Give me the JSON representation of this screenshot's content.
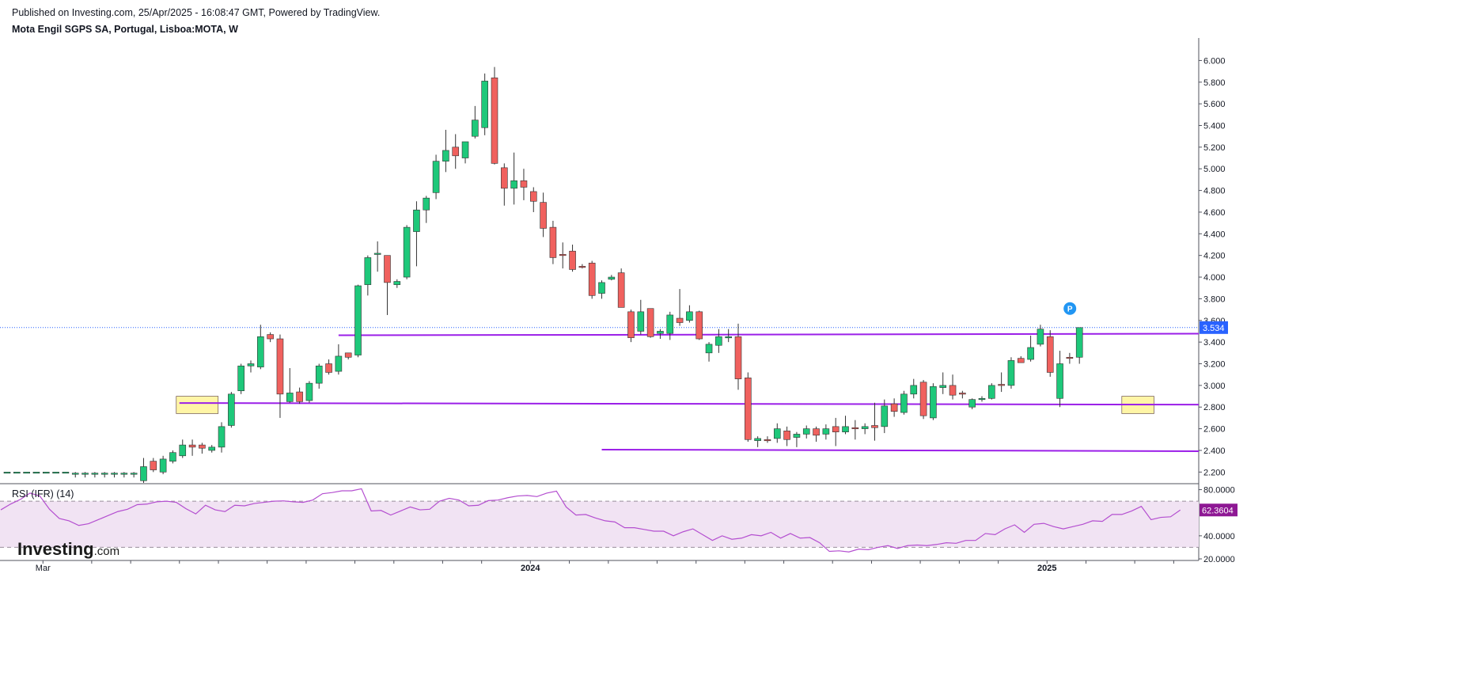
{
  "header": {
    "published": "Published on Investing.com, 25/Apr/2025 - 16:08:47 GMT, Powered by TradingView.",
    "symbol": "Mota Engil SGPS SA, Portugal, Lisboa:MOTA, W"
  },
  "logo": {
    "main": "Investing",
    "suffix": ".com"
  },
  "colors": {
    "up": "#1ec87a",
    "down": "#f0615e",
    "level_line": "#9b1fe8",
    "rsi_line": "#b44fd0",
    "rsi_band": "#f1e3f3",
    "price_label": "#2962ff",
    "rsi_label": "#8e1894"
  },
  "chart_data": [
    {
      "type": "candlestick",
      "title": "Mota Engil SGPS SA, Portugal, Lisboa:MOTA, W",
      "ylim": [
        2.1,
        6.12
      ],
      "y_ticks": [
        "6.000",
        "5.800",
        "5.600",
        "5.400",
        "5.200",
        "5.000",
        "4.800",
        "4.600",
        "4.400",
        "4.200",
        "4.000",
        "3.800",
        "3.600",
        "3.400",
        "3.200",
        "3.000",
        "2.800",
        "2.600",
        "2.400",
        "2.200"
      ],
      "x_tick_labels": [
        {
          "index": 4,
          "label": "Mar"
        },
        {
          "index": 54,
          "label": "2024"
        },
        {
          "index": 107,
          "label": "2025"
        }
      ],
      "x_tick_marks": [
        4,
        9,
        13,
        18,
        22,
        27,
        31,
        36,
        40,
        45,
        49,
        54,
        58,
        62,
        67,
        71,
        76,
        80,
        85,
        89,
        94,
        98,
        102,
        107,
        111,
        116,
        120
      ],
      "last_price": "3.534",
      "marker": "P",
      "support_resistance_levels": [
        3.47,
        2.83,
        2.4
      ],
      "zones": [
        {
          "from_index": 18,
          "to_index": 21,
          "low": 2.74,
          "high": 2.9
        },
        {
          "from_index": 115,
          "to_index": 117,
          "low": 2.74,
          "high": 2.9
        }
      ],
      "candles": [
        {
          "o": 2.2,
          "h": 2.2,
          "l": 2.2,
          "c": 2.2
        },
        {
          "o": 2.2,
          "h": 2.2,
          "l": 2.2,
          "c": 2.2
        },
        {
          "o": 2.2,
          "h": 2.2,
          "l": 2.2,
          "c": 2.2
        },
        {
          "o": 2.2,
          "h": 2.2,
          "l": 2.2,
          "c": 2.2
        },
        {
          "o": 2.2,
          "h": 2.2,
          "l": 2.2,
          "c": 2.2
        },
        {
          "o": 2.2,
          "h": 2.2,
          "l": 2.2,
          "c": 2.2
        },
        {
          "o": 2.2,
          "h": 2.2,
          "l": 2.2,
          "c": 2.2
        },
        {
          "o": 2.18,
          "h": 2.2,
          "l": 2.15,
          "c": 2.19
        },
        {
          "o": 2.18,
          "h": 2.2,
          "l": 2.15,
          "c": 2.19
        },
        {
          "o": 2.18,
          "h": 2.2,
          "l": 2.15,
          "c": 2.19
        },
        {
          "o": 2.18,
          "h": 2.2,
          "l": 2.15,
          "c": 2.19
        },
        {
          "o": 2.18,
          "h": 2.2,
          "l": 2.15,
          "c": 2.19
        },
        {
          "o": 2.18,
          "h": 2.2,
          "l": 2.15,
          "c": 2.19
        },
        {
          "o": 2.18,
          "h": 2.2,
          "l": 2.15,
          "c": 2.19
        },
        {
          "o": 2.12,
          "h": 2.33,
          "l": 2.1,
          "c": 2.25
        },
        {
          "o": 2.3,
          "h": 2.33,
          "l": 2.2,
          "c": 2.22
        },
        {
          "o": 2.2,
          "h": 2.35,
          "l": 2.18,
          "c": 2.32
        },
        {
          "o": 2.3,
          "h": 2.4,
          "l": 2.28,
          "c": 2.38
        },
        {
          "o": 2.35,
          "h": 2.5,
          "l": 2.33,
          "c": 2.45
        },
        {
          "o": 2.45,
          "h": 2.5,
          "l": 2.35,
          "c": 2.43
        },
        {
          "o": 2.45,
          "h": 2.47,
          "l": 2.37,
          "c": 2.42
        },
        {
          "o": 2.4,
          "h": 2.45,
          "l": 2.38,
          "c": 2.43
        },
        {
          "o": 2.43,
          "h": 2.66,
          "l": 2.38,
          "c": 2.62
        },
        {
          "o": 2.63,
          "h": 2.94,
          "l": 2.61,
          "c": 2.92
        },
        {
          "o": 2.95,
          "h": 3.2,
          "l": 2.92,
          "c": 3.18
        },
        {
          "o": 3.18,
          "h": 3.23,
          "l": 3.12,
          "c": 3.2
        },
        {
          "o": 3.17,
          "h": 3.56,
          "l": 3.15,
          "c": 3.45
        },
        {
          "o": 3.47,
          "h": 3.49,
          "l": 3.4,
          "c": 3.43
        },
        {
          "o": 3.43,
          "h": 3.47,
          "l": 2.7,
          "c": 2.92
        },
        {
          "o": 2.85,
          "h": 3.16,
          "l": 2.84,
          "c": 2.93
        },
        {
          "o": 2.94,
          "h": 2.98,
          "l": 2.83,
          "c": 2.85
        },
        {
          "o": 2.86,
          "h": 3.04,
          "l": 2.84,
          "c": 3.02
        },
        {
          "o": 3.02,
          "h": 3.2,
          "l": 2.97,
          "c": 3.18
        },
        {
          "o": 3.2,
          "h": 3.24,
          "l": 3.1,
          "c": 3.12
        },
        {
          "o": 3.13,
          "h": 3.38,
          "l": 3.1,
          "c": 3.27
        },
        {
          "o": 3.3,
          "h": 3.3,
          "l": 3.24,
          "c": 3.26
        },
        {
          "o": 3.28,
          "h": 3.93,
          "l": 3.26,
          "c": 3.92
        },
        {
          "o": 3.93,
          "h": 4.2,
          "l": 3.83,
          "c": 4.18
        },
        {
          "o": 4.22,
          "h": 4.33,
          "l": 4.05,
          "c": 4.22
        },
        {
          "o": 4.2,
          "h": 4.2,
          "l": 3.65,
          "c": 3.95
        },
        {
          "o": 3.93,
          "h": 3.98,
          "l": 3.9,
          "c": 3.96
        },
        {
          "o": 4.0,
          "h": 4.48,
          "l": 3.98,
          "c": 4.46
        },
        {
          "o": 4.42,
          "h": 4.7,
          "l": 4.1,
          "c": 4.62
        },
        {
          "o": 4.62,
          "h": 4.75,
          "l": 4.5,
          "c": 4.73
        },
        {
          "o": 4.78,
          "h": 5.13,
          "l": 4.72,
          "c": 5.07
        },
        {
          "o": 5.07,
          "h": 5.36,
          "l": 4.97,
          "c": 5.17
        },
        {
          "o": 5.2,
          "h": 5.32,
          "l": 5.0,
          "c": 5.12
        },
        {
          "o": 5.1,
          "h": 5.22,
          "l": 5.05,
          "c": 5.25
        },
        {
          "o": 5.3,
          "h": 5.58,
          "l": 5.28,
          "c": 5.45
        },
        {
          "o": 5.38,
          "h": 5.88,
          "l": 5.31,
          "c": 5.81
        },
        {
          "o": 5.84,
          "h": 5.94,
          "l": 5.04,
          "c": 5.05
        },
        {
          "o": 5.01,
          "h": 5.05,
          "l": 4.66,
          "c": 4.82
        },
        {
          "o": 4.82,
          "h": 5.15,
          "l": 4.67,
          "c": 4.89
        },
        {
          "o": 4.89,
          "h": 5.0,
          "l": 4.71,
          "c": 4.83
        },
        {
          "o": 4.79,
          "h": 4.83,
          "l": 4.6,
          "c": 4.7
        },
        {
          "o": 4.69,
          "h": 4.78,
          "l": 4.37,
          "c": 4.45
        },
        {
          "o": 4.46,
          "h": 4.52,
          "l": 4.12,
          "c": 4.18
        },
        {
          "o": 4.21,
          "h": 4.32,
          "l": 4.08,
          "c": 4.2
        },
        {
          "o": 4.24,
          "h": 4.3,
          "l": 4.05,
          "c": 4.07
        },
        {
          "o": 4.1,
          "h": 4.12,
          "l": 4.08,
          "c": 4.09
        },
        {
          "o": 4.13,
          "h": 4.15,
          "l": 3.8,
          "c": 3.83
        },
        {
          "o": 3.85,
          "h": 3.97,
          "l": 3.8,
          "c": 3.95
        },
        {
          "o": 3.98,
          "h": 4.02,
          "l": 3.97,
          "c": 4.0
        },
        {
          "o": 4.04,
          "h": 4.08,
          "l": 3.72,
          "c": 3.72
        },
        {
          "o": 3.68,
          "h": 3.7,
          "l": 3.4,
          "c": 3.44
        },
        {
          "o": 3.5,
          "h": 3.79,
          "l": 3.47,
          "c": 3.68
        },
        {
          "o": 3.71,
          "h": 3.71,
          "l": 3.44,
          "c": 3.45
        },
        {
          "o": 3.48,
          "h": 3.52,
          "l": 3.43,
          "c": 3.5
        },
        {
          "o": 3.48,
          "h": 3.68,
          "l": 3.42,
          "c": 3.65
        },
        {
          "o": 3.62,
          "h": 3.89,
          "l": 3.55,
          "c": 3.58
        },
        {
          "o": 3.6,
          "h": 3.74,
          "l": 3.58,
          "c": 3.68
        },
        {
          "o": 3.68,
          "h": 3.69,
          "l": 3.42,
          "c": 3.43
        },
        {
          "o": 3.3,
          "h": 3.4,
          "l": 3.22,
          "c": 3.38
        },
        {
          "o": 3.37,
          "h": 3.52,
          "l": 3.3,
          "c": 3.45
        },
        {
          "o": 3.44,
          "h": 3.52,
          "l": 3.4,
          "c": 3.45
        },
        {
          "o": 3.45,
          "h": 3.57,
          "l": 2.96,
          "c": 3.06
        },
        {
          "o": 3.07,
          "h": 3.12,
          "l": 2.48,
          "c": 2.5
        },
        {
          "o": 2.49,
          "h": 2.53,
          "l": 2.43,
          "c": 2.51
        },
        {
          "o": 2.5,
          "h": 2.53,
          "l": 2.47,
          "c": 2.49
        },
        {
          "o": 2.51,
          "h": 2.65,
          "l": 2.47,
          "c": 2.6
        },
        {
          "o": 2.58,
          "h": 2.62,
          "l": 2.44,
          "c": 2.5
        },
        {
          "o": 2.52,
          "h": 2.57,
          "l": 2.43,
          "c": 2.55
        },
        {
          "o": 2.55,
          "h": 2.63,
          "l": 2.51,
          "c": 2.6
        },
        {
          "o": 2.6,
          "h": 2.62,
          "l": 2.48,
          "c": 2.54
        },
        {
          "o": 2.55,
          "h": 2.64,
          "l": 2.5,
          "c": 2.6
        },
        {
          "o": 2.62,
          "h": 2.7,
          "l": 2.44,
          "c": 2.57
        },
        {
          "o": 2.57,
          "h": 2.72,
          "l": 2.55,
          "c": 2.62
        },
        {
          "o": 2.61,
          "h": 2.68,
          "l": 2.5,
          "c": 2.6
        },
        {
          "o": 2.6,
          "h": 2.65,
          "l": 2.55,
          "c": 2.62
        },
        {
          "o": 2.63,
          "h": 2.84,
          "l": 2.49,
          "c": 2.61
        },
        {
          "o": 2.62,
          "h": 2.87,
          "l": 2.56,
          "c": 2.81
        },
        {
          "o": 2.83,
          "h": 2.88,
          "l": 2.71,
          "c": 2.76
        },
        {
          "o": 2.75,
          "h": 2.95,
          "l": 2.73,
          "c": 2.92
        },
        {
          "o": 2.92,
          "h": 3.06,
          "l": 2.88,
          "c": 3.0
        },
        {
          "o": 3.03,
          "h": 3.05,
          "l": 2.69,
          "c": 2.72
        },
        {
          "o": 2.7,
          "h": 3.02,
          "l": 2.68,
          "c": 2.99
        },
        {
          "o": 2.98,
          "h": 3.12,
          "l": 2.92,
          "c": 3.0
        },
        {
          "o": 3.0,
          "h": 3.1,
          "l": 2.87,
          "c": 2.91
        },
        {
          "o": 2.93,
          "h": 2.95,
          "l": 2.88,
          "c": 2.92
        },
        {
          "o": 2.8,
          "h": 2.88,
          "l": 2.78,
          "c": 2.87
        },
        {
          "o": 2.87,
          "h": 2.9,
          "l": 2.85,
          "c": 2.88
        },
        {
          "o": 2.88,
          "h": 3.02,
          "l": 2.87,
          "c": 3.0
        },
        {
          "o": 3.01,
          "h": 3.12,
          "l": 2.94,
          "c": 3.0
        },
        {
          "o": 3.0,
          "h": 3.26,
          "l": 2.97,
          "c": 3.23
        },
        {
          "o": 3.25,
          "h": 3.27,
          "l": 3.21,
          "c": 3.21
        },
        {
          "o": 3.24,
          "h": 3.46,
          "l": 3.22,
          "c": 3.35
        },
        {
          "o": 3.38,
          "h": 3.56,
          "l": 3.36,
          "c": 3.52
        },
        {
          "o": 3.45,
          "h": 3.51,
          "l": 3.08,
          "c": 3.12
        },
        {
          "o": 2.88,
          "h": 3.32,
          "l": 2.8,
          "c": 3.2
        },
        {
          "o": 3.26,
          "h": 3.3,
          "l": 3.2,
          "c": 3.25
        },
        {
          "o": 3.26,
          "h": 3.53,
          "l": 3.2,
          "c": 3.534
        }
      ]
    },
    {
      "type": "line",
      "title": "RSI (IFR) (14)",
      "ylim": [
        20,
        84.5
      ],
      "y_ticks": [
        "80.0000",
        "40.0000",
        "20.0000"
      ],
      "bands": [
        70,
        30
      ],
      "last_value": "62.3604",
      "values": [
        62.5,
        67.5,
        71.5,
        77,
        74.5,
        63,
        55,
        53,
        49,
        50.5,
        54,
        57.5,
        61,
        63,
        67,
        67.5,
        69.5,
        70,
        69,
        63.5,
        59,
        66.5,
        62.5,
        61,
        66.5,
        66,
        68,
        69,
        70,
        70.3,
        69.5,
        69,
        71,
        76.5,
        77.5,
        79,
        79,
        80.8,
        61.5,
        62,
        58,
        61.5,
        65,
        62.5,
        63,
        70,
        72.5,
        71,
        66,
        66.5,
        70.5,
        71,
        73,
        74.5,
        75,
        74,
        77,
        78.7,
        65,
        58,
        58.5,
        55.5,
        53,
        52,
        47,
        47,
        45.5,
        44,
        44,
        40,
        43.5,
        46,
        41,
        36,
        40,
        37,
        38,
        41,
        40,
        43,
        38,
        42,
        38,
        38.5,
        34,
        26.5,
        27,
        26,
        28.5,
        28,
        30,
        31.5,
        29,
        31.5,
        32,
        31.5,
        32.5,
        34,
        33.5,
        36,
        36,
        42,
        41,
        46,
        49.5,
        43,
        50,
        50.8,
        48,
        46,
        48,
        50,
        53,
        52.5,
        58.5,
        58.5,
        61.5,
        65.5,
        54,
        56,
        56.5,
        62.3604
      ]
    }
  ]
}
